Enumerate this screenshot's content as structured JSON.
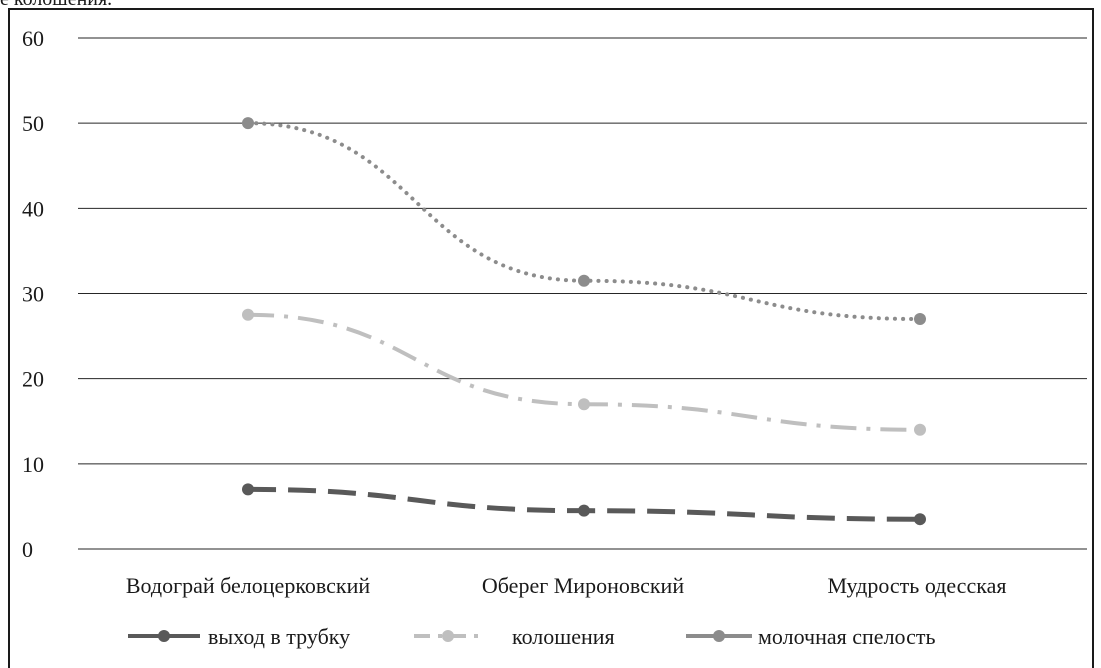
{
  "caption_fragment": "е колошения.",
  "chart_data": {
    "type": "line",
    "categories": [
      "Водограй белоцерковский",
      "Оберег Мироновский",
      "Мудрость одесская"
    ],
    "ylim": [
      0,
      60
    ],
    "yticks": [
      0,
      10,
      20,
      30,
      40,
      50,
      60
    ],
    "grid": true,
    "legend_position": "bottom",
    "series": [
      {
        "name": "выход в трубку",
        "values": [
          7.0,
          4.5,
          3.5
        ],
        "color": "#595959",
        "style": "dashed"
      },
      {
        "name": "колошения",
        "values": [
          27.5,
          17.0,
          14.0
        ],
        "color": "#bfbfbf",
        "style": "dash-dot"
      },
      {
        "name": "молочная спелость",
        "values": [
          50.0,
          31.5,
          27.0
        ],
        "color": "#8c8c8c",
        "style": "dotted"
      }
    ]
  }
}
